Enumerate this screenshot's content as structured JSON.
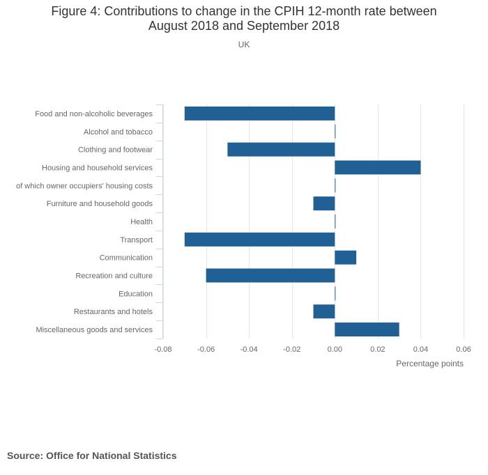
{
  "title_line1": "Figure 4: Contributions to change in the CPIH 12-month rate between",
  "title_line2": "August 2018 and September 2018",
  "subtitle": "UK",
  "source": "Source: Office for National Statistics",
  "colors": {
    "bar": "#206095",
    "grid": "#e6e6e6",
    "axis": "#ccd6eb",
    "label": "#666666"
  },
  "chart_data": {
    "type": "bar",
    "orientation": "horizontal",
    "categories": [
      "Food and non-alcoholic beverages",
      "Alcohol and tobacco",
      "Clothing and footwear",
      "Housing and household services",
      "of which owner occupiers' housing costs",
      "Furniture and household goods",
      "Health",
      "Transport",
      "Communication",
      "Recreation and culture",
      "Education",
      "Restaurants and hotels",
      "Miscellaneous goods and services"
    ],
    "values": [
      -0.07,
      0.0,
      -0.05,
      0.04,
      0.0,
      -0.01,
      0.0,
      -0.07,
      0.01,
      -0.06,
      0.0,
      -0.01,
      0.03
    ],
    "title": "Figure 4: Contributions to change in the CPIH 12-month rate between August 2018 and September 2018",
    "xlabel": "Percentage points",
    "ylabel": "",
    "xlim": [
      -0.08,
      0.06
    ],
    "xticks": [
      -0.08,
      -0.06,
      -0.04,
      -0.02,
      0.0,
      0.02,
      0.04,
      0.06
    ],
    "xtick_labels": [
      "-0.08",
      "-0.06",
      "-0.04",
      "-0.02",
      "0.00",
      "0.02",
      "0.04",
      "0.06"
    ],
    "grid": true,
    "legend": "none"
  }
}
